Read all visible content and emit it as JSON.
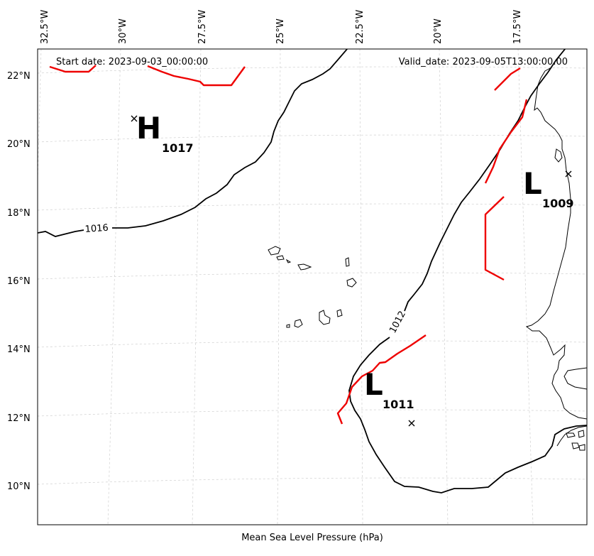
{
  "map": {
    "start_date": "Start date: 2023-09-03_00:00:00",
    "valid_date": "Valid_date: 2023-09-05T13:00:00.00",
    "footer_label": "Mean Sea Level Pressure (hPa)",
    "lon_labels": [
      "32.5°W",
      "30°W",
      "27.5°W",
      "25°W",
      "22.5°W",
      "20°W",
      "17.5°W"
    ],
    "lat_labels": [
      "22°N",
      "20°N",
      "18°N",
      "16°N",
      "14°N",
      "12°N",
      "10°N"
    ],
    "contour_labels": [
      "1016",
      "1012"
    ],
    "systems": [
      {
        "type": "H",
        "value": "1017"
      },
      {
        "type": "L",
        "value": "1009"
      },
      {
        "type": "L",
        "value": "1011"
      }
    ],
    "colors": {
      "front": "#ee0000",
      "isobar": "#000000",
      "grid": "#cfcfcf"
    }
  }
}
